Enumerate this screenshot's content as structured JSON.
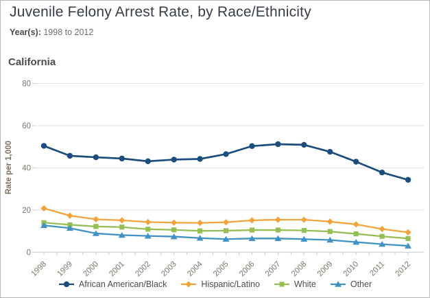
{
  "header": {
    "title": "Juvenile Felony Arrest Rate, by Race/Ethnicity",
    "years_label": "Year(s):",
    "years_value": "1998 to 2012",
    "region": "California"
  },
  "colors": {
    "title_text": "#373d47",
    "muted_text": "#6f6f6f",
    "axis_text": "#7c7569",
    "ylabel_text": "#7b7060",
    "grid_line": "#e0e0e0",
    "axis_line": "#c8c8c8",
    "legend_text": "#4c4c4c",
    "border": "#b7b7b7"
  },
  "chart_data": {
    "type": "line",
    "x": [
      1998,
      1999,
      2000,
      2001,
      2002,
      2003,
      2004,
      2005,
      2006,
      2007,
      2008,
      2009,
      2010,
      2011,
      2012
    ],
    "title": "",
    "xlabel": "",
    "ylabel": "Rate per 1,000",
    "ylim": [
      0,
      80
    ],
    "yticks": [
      0,
      20,
      40,
      60,
      80
    ],
    "grid": true,
    "legend_position": "bottom",
    "series": [
      {
        "name": "African American/Black",
        "color": "#1d4d7d",
        "marker": "circle",
        "values": [
          50.4,
          45.7,
          45.0,
          44.4,
          43.1,
          43.9,
          44.2,
          46.5,
          50.3,
          51.2,
          50.9,
          47.6,
          42.9,
          37.8,
          34.3
        ]
      },
      {
        "name": "Hispanic/Latino",
        "color": "#f2a33c",
        "marker": "diamond",
        "values": [
          20.8,
          17.3,
          15.6,
          15.1,
          14.3,
          14.0,
          13.9,
          14.2,
          15.1,
          15.4,
          15.4,
          14.5,
          13.2,
          11.0,
          9.4
        ]
      },
      {
        "name": "White",
        "color": "#95bf55",
        "marker": "square",
        "values": [
          14.0,
          13.0,
          12.2,
          11.9,
          10.9,
          10.6,
          10.1,
          10.2,
          10.5,
          10.5,
          10.3,
          9.8,
          8.7,
          7.5,
          6.5
        ]
      },
      {
        "name": "Other",
        "color": "#4191c5",
        "marker": "triangle",
        "values": [
          12.7,
          11.4,
          8.9,
          8.1,
          7.7,
          7.4,
          6.7,
          6.2,
          6.5,
          6.5,
          6.2,
          5.8,
          4.8,
          3.8,
          3.0
        ]
      }
    ]
  }
}
